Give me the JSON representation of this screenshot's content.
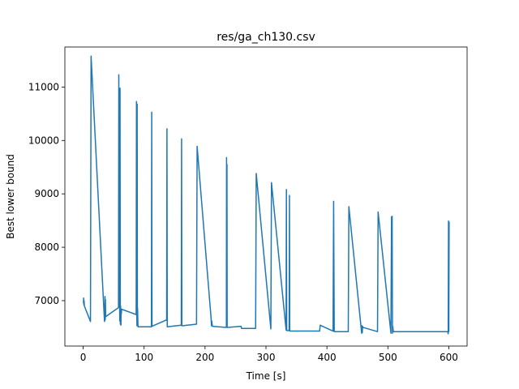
{
  "chart_data": {
    "type": "line",
    "title": "res/ga_ch130.csv",
    "xlabel": "Time [s]",
    "ylabel": "Best lower bound",
    "xlim": [
      -30,
      630
    ],
    "ylim": [
      6150,
      11750
    ],
    "xticks": [
      0,
      100,
      200,
      300,
      400,
      500,
      600
    ],
    "yticks": [
      7000,
      8000,
      9000,
      10000,
      11000
    ],
    "grid": false,
    "color": "#1f77b4",
    "series": [
      {
        "x": [
          0.5,
          0.8,
          1.2,
          1.5,
          2.0,
          12,
          13,
          35,
          35.5,
          35.8,
          36.2,
          36.5,
          37,
          58,
          58.5,
          59,
          59.5,
          60,
          60.5,
          61,
          61.5,
          62,
          62.3,
          62.8,
          63,
          87,
          87.5,
          88,
          88.3,
          88.6,
          89,
          89.3,
          89.6,
          90,
          112,
          112.5,
          113,
          137,
          137.5,
          138,
          161,
          161.5,
          162,
          186,
          187,
          210,
          210.5,
          211,
          211.5,
          212,
          235,
          235.3,
          235.6,
          236,
          236.3,
          236.6,
          237,
          259,
          260,
          283,
          284,
          308,
          309,
          333,
          333.5,
          334,
          338,
          338.5,
          339,
          365,
          388,
          389,
          410,
          411,
          412,
          435,
          436,
          457,
          457.5,
          458,
          458.5,
          459,
          483,
          484,
          505,
          506,
          507,
          507.5,
          508,
          509,
          531,
          598,
          599,
          599.5,
          600,
          600.5
        ],
        "y": [
          6950,
          7050,
          6920,
          7000,
          6900,
          6610,
          11580,
          6610,
          6660,
          7080,
          6640,
          7020,
          6700,
          6870,
          11230,
          6870,
          10700,
          6620,
          10980,
          6560,
          6900,
          6540,
          6820,
          6760,
          6840,
          6740,
          10730,
          6720,
          6530,
          10680,
          6560,
          6860,
          6680,
          6510,
          6510,
          10530,
          6520,
          6640,
          10220,
          6510,
          6540,
          10030,
          6530,
          6560,
          9890,
          6660,
          6530,
          6620,
          6570,
          6520,
          6500,
          9680,
          6520,
          9550,
          6510,
          6500,
          6500,
          6520,
          6480,
          6480,
          9380,
          6470,
          9210,
          6450,
          9080,
          6440,
          6440,
          8970,
          6430,
          6430,
          6430,
          6540,
          6430,
          8860,
          6420,
          6420,
          8760,
          6390,
          6530,
          6400,
          6520,
          6500,
          6420,
          8660,
          6390,
          8570,
          8580,
          6390,
          6520,
          6420,
          6420,
          6420,
          6380,
          8490,
          6420,
          8480
        ]
      }
    ]
  }
}
